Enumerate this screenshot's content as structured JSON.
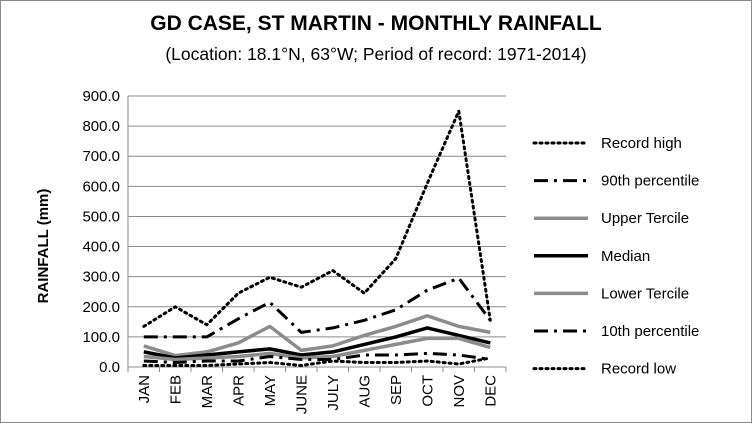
{
  "chart_data": {
    "type": "line",
    "title": "GD CASE, ST MARTIN - MONTHLY RAINFALL",
    "subtitle": "(Location: 18.1°N, 63°W; Period of record: 1971-2014)",
    "ylabel": "RAINFALL (mm)",
    "xlabel": "",
    "categories": [
      "JAN",
      "FEB",
      "MAR",
      "APR",
      "MAY",
      "JUNE",
      "JULY",
      "AUG",
      "SEP",
      "OCT",
      "NOV",
      "DEC"
    ],
    "ylim": [
      0,
      900
    ],
    "yticks": [
      0,
      100,
      200,
      300,
      400,
      500,
      600,
      700,
      800,
      900
    ],
    "ytick_labels": [
      "0.0",
      "100.0",
      "200.0",
      "300.0",
      "400.0",
      "500.0",
      "600.0",
      "700.0",
      "800.0",
      "900.0"
    ],
    "grid": true,
    "legend_position": "right",
    "series": [
      {
        "name": "Record high",
        "color": "#000000",
        "style": "dotted",
        "values": [
          135,
          200,
          140,
          245,
          298,
          265,
          320,
          245,
          360,
          610,
          850,
          155
        ]
      },
      {
        "name": "90th percentile",
        "color": "#000000",
        "style": "dashdot",
        "values": [
          100,
          100,
          100,
          160,
          215,
          115,
          130,
          155,
          190,
          255,
          295,
          155
        ]
      },
      {
        "name": "Upper Tercile",
        "color": "#8c8c8c",
        "style": "solid",
        "values": [
          70,
          38,
          50,
          80,
          135,
          55,
          70,
          105,
          135,
          170,
          135,
          115
        ]
      },
      {
        "name": "Median",
        "color": "#000000",
        "style": "solid",
        "values": [
          50,
          30,
          40,
          50,
          60,
          40,
          50,
          75,
          100,
          130,
          105,
          80
        ]
      },
      {
        "name": "Lower Tercile",
        "color": "#8c8c8c",
        "style": "solid",
        "values": [
          35,
          25,
          30,
          35,
          45,
          30,
          35,
          55,
          75,
          95,
          95,
          65
        ]
      },
      {
        "name": "10th percentile",
        "color": "#000000",
        "style": "dashdot",
        "values": [
          20,
          15,
          20,
          20,
          35,
          25,
          25,
          40,
          40,
          45,
          40,
          25
        ]
      },
      {
        "name": "Record low",
        "color": "#000000",
        "style": "dotted",
        "values": [
          5,
          5,
          5,
          10,
          15,
          5,
          20,
          15,
          15,
          20,
          10,
          30
        ]
      }
    ]
  }
}
